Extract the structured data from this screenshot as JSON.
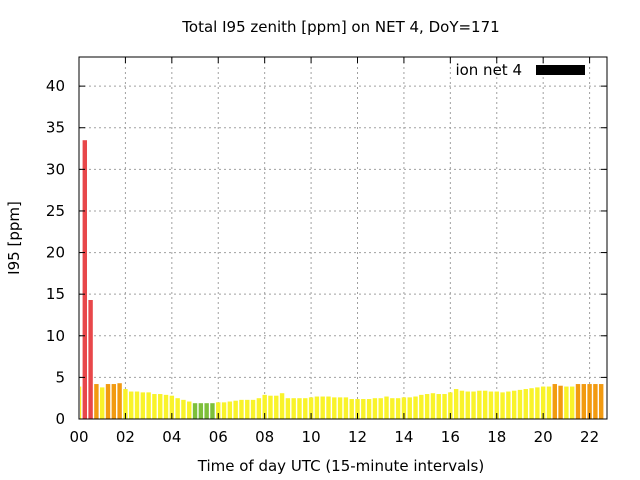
{
  "chart_data": {
    "type": "bar",
    "title": "Total I95 zenith [ppm] on NET 4, DoY=171",
    "xlabel": "Time of day UTC (15-minute intervals)",
    "ylabel": "I95 [ppm]",
    "xlim": [
      0,
      22.75
    ],
    "ylim": [
      0,
      43.5
    ],
    "x_ticks": [
      "00",
      "02",
      "04",
      "06",
      "08",
      "10",
      "12",
      "14",
      "16",
      "18",
      "20",
      "22"
    ],
    "y_ticks": [
      "0",
      "5",
      "10",
      "15",
      "20",
      "25",
      "30",
      "35",
      "40"
    ],
    "grid": true,
    "legend": {
      "position": "top-right",
      "entries": [
        {
          "label": "ion net 4",
          "color": "#000000"
        }
      ]
    },
    "bar_interval_hours": 0.25,
    "colors": {
      "red": "#e8474a",
      "orange": "#f29a10",
      "yellow": "#f9f32a",
      "green": "#7dbf3a"
    },
    "bars": [
      {
        "x": 0.0,
        "y": 3.9,
        "c": "yellow"
      },
      {
        "x": 0.25,
        "y": 33.5,
        "c": "red"
      },
      {
        "x": 0.5,
        "y": 14.3,
        "c": "red"
      },
      {
        "x": 0.75,
        "y": 4.2,
        "c": "orange"
      },
      {
        "x": 1.0,
        "y": 3.8,
        "c": "yellow"
      },
      {
        "x": 1.25,
        "y": 4.2,
        "c": "orange"
      },
      {
        "x": 1.5,
        "y": 4.2,
        "c": "orange"
      },
      {
        "x": 1.75,
        "y": 4.3,
        "c": "orange"
      },
      {
        "x": 2.0,
        "y": 3.6,
        "c": "yellow"
      },
      {
        "x": 2.25,
        "y": 3.3,
        "c": "yellow"
      },
      {
        "x": 2.5,
        "y": 3.3,
        "c": "yellow"
      },
      {
        "x": 2.75,
        "y": 3.2,
        "c": "yellow"
      },
      {
        "x": 3.0,
        "y": 3.2,
        "c": "yellow"
      },
      {
        "x": 3.25,
        "y": 3.0,
        "c": "yellow"
      },
      {
        "x": 3.5,
        "y": 3.0,
        "c": "yellow"
      },
      {
        "x": 3.75,
        "y": 2.9,
        "c": "yellow"
      },
      {
        "x": 4.0,
        "y": 2.8,
        "c": "yellow"
      },
      {
        "x": 4.25,
        "y": 2.5,
        "c": "yellow"
      },
      {
        "x": 4.5,
        "y": 2.3,
        "c": "yellow"
      },
      {
        "x": 4.75,
        "y": 2.1,
        "c": "yellow"
      },
      {
        "x": 5.0,
        "y": 1.9,
        "c": "green"
      },
      {
        "x": 5.25,
        "y": 1.9,
        "c": "green"
      },
      {
        "x": 5.5,
        "y": 1.9,
        "c": "green"
      },
      {
        "x": 5.75,
        "y": 1.9,
        "c": "green"
      },
      {
        "x": 6.0,
        "y": 2.0,
        "c": "yellow"
      },
      {
        "x": 6.25,
        "y": 2.0,
        "c": "yellow"
      },
      {
        "x": 6.5,
        "y": 2.1,
        "c": "yellow"
      },
      {
        "x": 6.75,
        "y": 2.2,
        "c": "yellow"
      },
      {
        "x": 7.0,
        "y": 2.3,
        "c": "yellow"
      },
      {
        "x": 7.25,
        "y": 2.3,
        "c": "yellow"
      },
      {
        "x": 7.5,
        "y": 2.3,
        "c": "yellow"
      },
      {
        "x": 7.75,
        "y": 2.5,
        "c": "yellow"
      },
      {
        "x": 8.0,
        "y": 2.9,
        "c": "yellow"
      },
      {
        "x": 8.25,
        "y": 2.8,
        "c": "yellow"
      },
      {
        "x": 8.5,
        "y": 2.8,
        "c": "yellow"
      },
      {
        "x": 8.75,
        "y": 3.1,
        "c": "yellow"
      },
      {
        "x": 9.0,
        "y": 2.5,
        "c": "yellow"
      },
      {
        "x": 9.25,
        "y": 2.5,
        "c": "yellow"
      },
      {
        "x": 9.5,
        "y": 2.5,
        "c": "yellow"
      },
      {
        "x": 9.75,
        "y": 2.5,
        "c": "yellow"
      },
      {
        "x": 10.0,
        "y": 2.6,
        "c": "yellow"
      },
      {
        "x": 10.25,
        "y": 2.7,
        "c": "yellow"
      },
      {
        "x": 10.5,
        "y": 2.7,
        "c": "yellow"
      },
      {
        "x": 10.75,
        "y": 2.7,
        "c": "yellow"
      },
      {
        "x": 11.0,
        "y": 2.6,
        "c": "yellow"
      },
      {
        "x": 11.25,
        "y": 2.6,
        "c": "yellow"
      },
      {
        "x": 11.5,
        "y": 2.6,
        "c": "yellow"
      },
      {
        "x": 11.75,
        "y": 2.4,
        "c": "yellow"
      },
      {
        "x": 12.0,
        "y": 2.4,
        "c": "yellow"
      },
      {
        "x": 12.25,
        "y": 2.4,
        "c": "yellow"
      },
      {
        "x": 12.5,
        "y": 2.4,
        "c": "yellow"
      },
      {
        "x": 12.75,
        "y": 2.5,
        "c": "yellow"
      },
      {
        "x": 13.0,
        "y": 2.5,
        "c": "yellow"
      },
      {
        "x": 13.25,
        "y": 2.7,
        "c": "yellow"
      },
      {
        "x": 13.5,
        "y": 2.5,
        "c": "yellow"
      },
      {
        "x": 13.75,
        "y": 2.5,
        "c": "yellow"
      },
      {
        "x": 14.0,
        "y": 2.6,
        "c": "yellow"
      },
      {
        "x": 14.25,
        "y": 2.6,
        "c": "yellow"
      },
      {
        "x": 14.5,
        "y": 2.7,
        "c": "yellow"
      },
      {
        "x": 14.75,
        "y": 2.9,
        "c": "yellow"
      },
      {
        "x": 15.0,
        "y": 3.0,
        "c": "yellow"
      },
      {
        "x": 15.25,
        "y": 3.1,
        "c": "yellow"
      },
      {
        "x": 15.5,
        "y": 3.0,
        "c": "yellow"
      },
      {
        "x": 15.75,
        "y": 3.0,
        "c": "yellow"
      },
      {
        "x": 16.0,
        "y": 3.2,
        "c": "yellow"
      },
      {
        "x": 16.25,
        "y": 3.6,
        "c": "yellow"
      },
      {
        "x": 16.5,
        "y": 3.4,
        "c": "yellow"
      },
      {
        "x": 16.75,
        "y": 3.3,
        "c": "yellow"
      },
      {
        "x": 17.0,
        "y": 3.3,
        "c": "yellow"
      },
      {
        "x": 17.25,
        "y": 3.4,
        "c": "yellow"
      },
      {
        "x": 17.5,
        "y": 3.4,
        "c": "yellow"
      },
      {
        "x": 17.75,
        "y": 3.3,
        "c": "yellow"
      },
      {
        "x": 18.0,
        "y": 3.3,
        "c": "yellow"
      },
      {
        "x": 18.25,
        "y": 3.2,
        "c": "yellow"
      },
      {
        "x": 18.5,
        "y": 3.3,
        "c": "yellow"
      },
      {
        "x": 18.75,
        "y": 3.4,
        "c": "yellow"
      },
      {
        "x": 19.0,
        "y": 3.5,
        "c": "yellow"
      },
      {
        "x": 19.25,
        "y": 3.6,
        "c": "yellow"
      },
      {
        "x": 19.5,
        "y": 3.7,
        "c": "yellow"
      },
      {
        "x": 19.75,
        "y": 3.8,
        "c": "yellow"
      },
      {
        "x": 20.0,
        "y": 3.9,
        "c": "yellow"
      },
      {
        "x": 20.25,
        "y": 3.9,
        "c": "yellow"
      },
      {
        "x": 20.5,
        "y": 4.2,
        "c": "orange"
      },
      {
        "x": 20.75,
        "y": 4.0,
        "c": "orange"
      },
      {
        "x": 21.0,
        "y": 3.9,
        "c": "yellow"
      },
      {
        "x": 21.25,
        "y": 3.9,
        "c": "yellow"
      },
      {
        "x": 21.5,
        "y": 4.2,
        "c": "orange"
      },
      {
        "x": 21.75,
        "y": 4.2,
        "c": "orange"
      },
      {
        "x": 22.0,
        "y": 4.2,
        "c": "orange"
      },
      {
        "x": 22.25,
        "y": 4.2,
        "c": "orange"
      },
      {
        "x": 22.5,
        "y": 4.2,
        "c": "orange"
      }
    ]
  }
}
